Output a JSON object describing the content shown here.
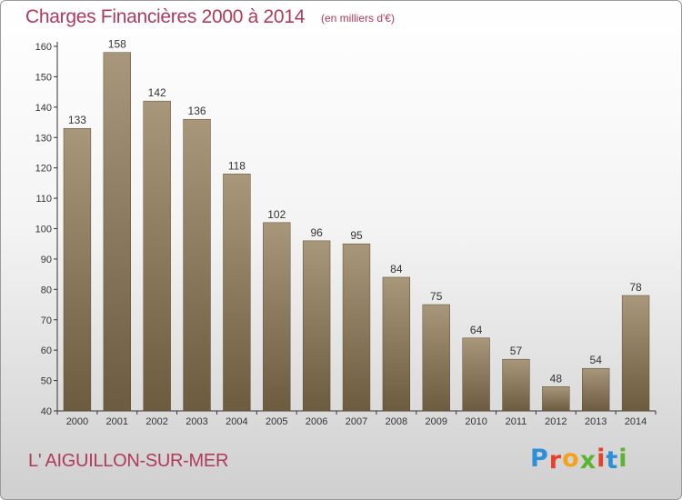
{
  "header": {
    "title": "Charges Financières 2000 à 2014",
    "unit": "(en milliers d'€)"
  },
  "footer": {
    "city": "L' AIGUILLON-SUR-MER",
    "brand_letters": [
      "P",
      "r",
      "o",
      "x",
      "i",
      "t",
      "i"
    ],
    "brand_colors": [
      "#2e8fd8",
      "#e8402a",
      "#f3a21b",
      "#5cb531",
      "#e8402a",
      "#2e8fd8",
      "#5cb531"
    ]
  },
  "colors": {
    "bar_light": "#a8977a",
    "bar_dark": "#6d5b3f",
    "bar_edge": "#5a4a30"
  },
  "chart_data": {
    "type": "bar",
    "title": "Charges Financières 2000 à 2014",
    "categories": [
      "2000",
      "2001",
      "2002",
      "2003",
      "2004",
      "2005",
      "2006",
      "2007",
      "2008",
      "2009",
      "2010",
      "2011",
      "2012",
      "2013",
      "2014"
    ],
    "values": [
      133,
      158,
      142,
      136,
      118,
      102,
      96,
      95,
      84,
      75,
      64,
      57,
      48,
      54,
      78
    ],
    "data_labels": [
      "133",
      "158",
      "142",
      "136",
      "118",
      "102",
      "96",
      "95",
      "84",
      "75",
      "64",
      "57",
      "48",
      "54",
      "78"
    ],
    "yticks": [
      "40",
      "50",
      "60",
      "70",
      "80",
      "90",
      "100",
      "110",
      "120",
      "130",
      "140",
      "150",
      "160"
    ],
    "ylim": [
      40,
      160
    ],
    "grid": false,
    "legend": "none"
  }
}
